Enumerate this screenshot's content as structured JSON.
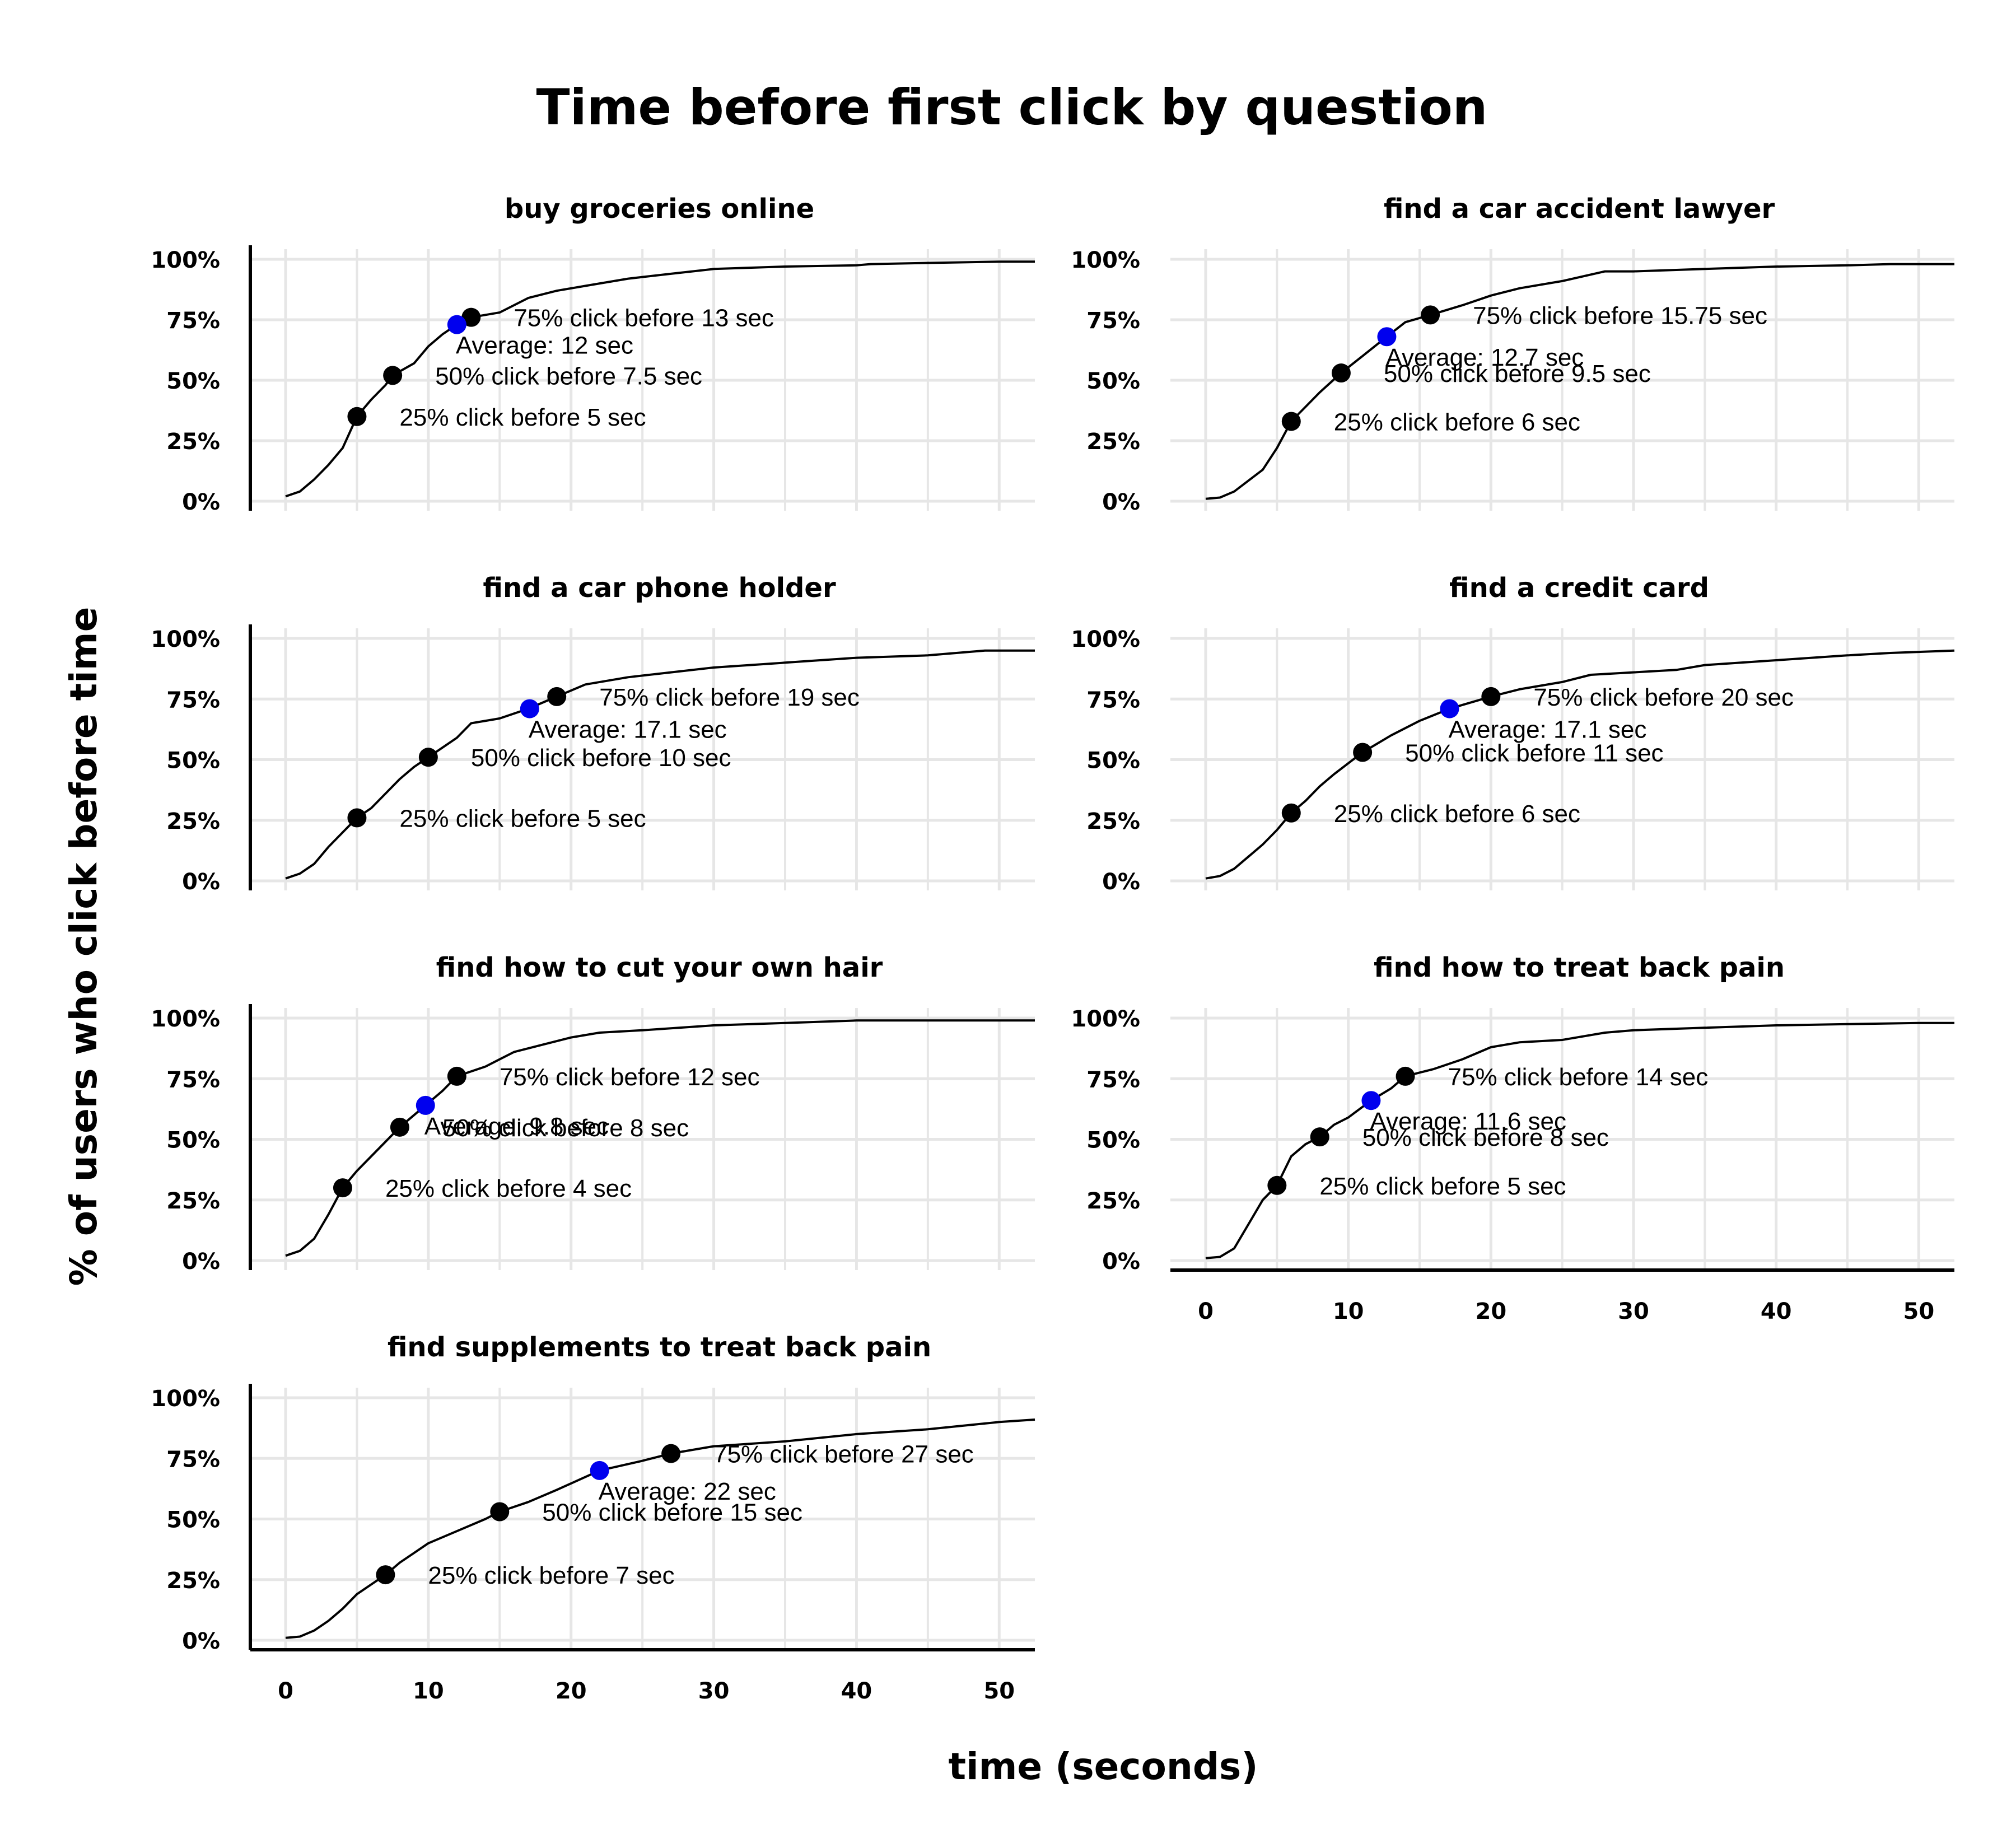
{
  "title": "Time before first click by question",
  "xlabel": "time (seconds)",
  "ylabel": "% of users who click before time",
  "colors": {
    "curve": "#000000",
    "quartile_point": "#000000",
    "average_point": "#0000ee",
    "grid": "#e6e6e6"
  },
  "chart_data": [
    {
      "type": "line",
      "title": "buy groceries online",
      "xlim": [
        0,
        52.5
      ],
      "ylim": [
        0,
        100
      ],
      "x_ticks": [
        0,
        10,
        20,
        30,
        40,
        50
      ],
      "y_ticks": [
        "0%",
        "25%",
        "50%",
        "75%",
        "100%"
      ],
      "show_x_axis": false,
      "curve": [
        [
          0,
          2
        ],
        [
          1,
          4
        ],
        [
          2,
          9
        ],
        [
          3,
          15
        ],
        [
          4,
          22
        ],
        [
          5,
          35
        ],
        [
          6,
          42
        ],
        [
          7,
          48
        ],
        [
          7.5,
          52
        ],
        [
          9,
          57
        ],
        [
          10,
          64
        ],
        [
          11,
          69
        ],
        [
          12,
          73
        ],
        [
          13,
          76
        ],
        [
          15,
          78
        ],
        [
          17,
          84
        ],
        [
          19,
          87
        ],
        [
          21,
          89
        ],
        [
          24,
          92
        ],
        [
          27,
          94
        ],
        [
          30,
          96
        ],
        [
          35,
          97
        ],
        [
          40,
          97.5
        ],
        [
          41,
          98
        ],
        [
          45,
          98.5
        ],
        [
          50,
          99
        ],
        [
          52.5,
          99
        ]
      ],
      "points": [
        {
          "x": 5,
          "y": 35,
          "kind": "quartile",
          "label": "25% click before 5 sec"
        },
        {
          "x": 7.5,
          "y": 52,
          "kind": "quartile",
          "label": "50% click before 7.5 sec"
        },
        {
          "x": 13,
          "y": 76,
          "kind": "quartile",
          "label": "75% click before 13 sec"
        },
        {
          "x": 12,
          "y": 73,
          "kind": "average",
          "label": "Average: 12 sec"
        }
      ]
    },
    {
      "type": "line",
      "title": "find a car accident lawyer",
      "xlim": [
        0,
        52.5
      ],
      "ylim": [
        0,
        100
      ],
      "x_ticks": [
        0,
        10,
        20,
        30,
        40,
        50
      ],
      "y_ticks": [
        "0%",
        "25%",
        "50%",
        "75%",
        "100%"
      ],
      "show_x_axis": false,
      "curve": [
        [
          0,
          1
        ],
        [
          1,
          1.5
        ],
        [
          2,
          4
        ],
        [
          4,
          13
        ],
        [
          5,
          22
        ],
        [
          6,
          33
        ],
        [
          7,
          39
        ],
        [
          8,
          45
        ],
        [
          9.5,
          53
        ],
        [
          11,
          60
        ],
        [
          12.7,
          68
        ],
        [
          14,
          74
        ],
        [
          15.75,
          77
        ],
        [
          18,
          81
        ],
        [
          20,
          85
        ],
        [
          22,
          88
        ],
        [
          25,
          91
        ],
        [
          28,
          95
        ],
        [
          30,
          95
        ],
        [
          35,
          96
        ],
        [
          40,
          97
        ],
        [
          45,
          97.5
        ],
        [
          48,
          98
        ],
        [
          52.5,
          98
        ]
      ],
      "points": [
        {
          "x": 6,
          "y": 33,
          "kind": "quartile",
          "label": "25% click before 6 sec"
        },
        {
          "x": 9.5,
          "y": 53,
          "kind": "quartile",
          "label": "50% click before 9.5 sec"
        },
        {
          "x": 15.75,
          "y": 77,
          "kind": "quartile",
          "label": "75% click before 15.75 sec"
        },
        {
          "x": 12.7,
          "y": 68,
          "kind": "average",
          "label": "Average: 12.7 sec"
        }
      ]
    },
    {
      "type": "line",
      "title": "find a car phone holder",
      "xlim": [
        0,
        52.5
      ],
      "ylim": [
        0,
        100
      ],
      "x_ticks": [
        0,
        10,
        20,
        30,
        40,
        50
      ],
      "y_ticks": [
        "0%",
        "25%",
        "50%",
        "75%",
        "100%"
      ],
      "show_x_axis": false,
      "curve": [
        [
          0,
          1
        ],
        [
          1,
          3
        ],
        [
          2,
          7
        ],
        [
          3,
          14
        ],
        [
          4,
          20
        ],
        [
          5,
          26
        ],
        [
          6,
          30
        ],
        [
          7,
          36
        ],
        [
          8,
          42
        ],
        [
          9,
          47
        ],
        [
          10,
          51
        ],
        [
          12,
          59
        ],
        [
          13,
          65
        ],
        [
          15,
          67
        ],
        [
          17,
          71
        ],
        [
          19,
          76
        ],
        [
          21,
          81
        ],
        [
          24,
          84
        ],
        [
          27,
          86
        ],
        [
          30,
          88
        ],
        [
          35,
          90
        ],
        [
          40,
          92
        ],
        [
          45,
          93
        ],
        [
          49,
          95
        ],
        [
          52.5,
          95
        ]
      ],
      "points": [
        {
          "x": 5,
          "y": 26,
          "kind": "quartile",
          "label": "25% click before 5 sec"
        },
        {
          "x": 10,
          "y": 51,
          "kind": "quartile",
          "label": "50% click before 10 sec"
        },
        {
          "x": 19,
          "y": 76,
          "kind": "quartile",
          "label": "75% click before 19 sec"
        },
        {
          "x": 17.1,
          "y": 71,
          "kind": "average",
          "label": "Average: 17.1 sec"
        }
      ]
    },
    {
      "type": "line",
      "title": "find a credit card",
      "xlim": [
        0,
        52.5
      ],
      "ylim": [
        0,
        100
      ],
      "x_ticks": [
        0,
        10,
        20,
        30,
        40,
        50
      ],
      "y_ticks": [
        "0%",
        "25%",
        "50%",
        "75%",
        "100%"
      ],
      "show_x_axis": false,
      "curve": [
        [
          0,
          1
        ],
        [
          1,
          2
        ],
        [
          2,
          5
        ],
        [
          3,
          10
        ],
        [
          4,
          15
        ],
        [
          5,
          21
        ],
        [
          6,
          28
        ],
        [
          7,
          33
        ],
        [
          8,
          39
        ],
        [
          9,
          44
        ],
        [
          11,
          53
        ],
        [
          13,
          60
        ],
        [
          15,
          66
        ],
        [
          17.1,
          71
        ],
        [
          20,
          76
        ],
        [
          22,
          79
        ],
        [
          25,
          82
        ],
        [
          27,
          85
        ],
        [
          30,
          86
        ],
        [
          33,
          87
        ],
        [
          35,
          89
        ],
        [
          40,
          91
        ],
        [
          45,
          93
        ],
        [
          48,
          94
        ],
        [
          52.5,
          95
        ]
      ],
      "points": [
        {
          "x": 6,
          "y": 28,
          "kind": "quartile",
          "label": "25% click before 6 sec"
        },
        {
          "x": 11,
          "y": 53,
          "kind": "quartile",
          "label": "50% click before 11 sec"
        },
        {
          "x": 20,
          "y": 76,
          "kind": "quartile",
          "label": "75% click before 20 sec"
        },
        {
          "x": 17.1,
          "y": 71,
          "kind": "average",
          "label": "Average: 17.1 sec"
        }
      ]
    },
    {
      "type": "line",
      "title": "find how to cut your own hair",
      "xlim": [
        0,
        52.5
      ],
      "ylim": [
        0,
        100
      ],
      "x_ticks": [
        0,
        10,
        20,
        30,
        40,
        50
      ],
      "y_ticks": [
        "0%",
        "25%",
        "50%",
        "75%",
        "100%"
      ],
      "show_x_axis": false,
      "curve": [
        [
          0,
          2
        ],
        [
          1,
          4
        ],
        [
          2,
          9
        ],
        [
          3,
          19
        ],
        [
          4,
          30
        ],
        [
          5,
          37
        ],
        [
          6,
          43
        ],
        [
          7,
          49
        ],
        [
          8,
          55
        ],
        [
          9,
          60
        ],
        [
          9.8,
          64
        ],
        [
          11,
          70
        ],
        [
          12,
          76
        ],
        [
          14,
          80
        ],
        [
          16,
          86
        ],
        [
          18,
          89
        ],
        [
          20,
          92
        ],
        [
          22,
          94
        ],
        [
          25,
          95
        ],
        [
          30,
          97
        ],
        [
          35,
          98
        ],
        [
          40,
          99
        ],
        [
          45,
          99
        ],
        [
          52.5,
          99
        ]
      ],
      "points": [
        {
          "x": 4,
          "y": 30,
          "kind": "quartile",
          "label": "25% click before 4 sec"
        },
        {
          "x": 8,
          "y": 55,
          "kind": "quartile",
          "label": "50% click before 8 sec"
        },
        {
          "x": 12,
          "y": 76,
          "kind": "quartile",
          "label": "75% click before 12 sec"
        },
        {
          "x": 9.8,
          "y": 64,
          "kind": "average",
          "label": "Average: 9.8 sec"
        }
      ]
    },
    {
      "type": "line",
      "title": "find how to treat back pain",
      "xlim": [
        0,
        52.5
      ],
      "ylim": [
        0,
        100
      ],
      "x_ticks": [
        0,
        10,
        20,
        30,
        40,
        50
      ],
      "y_ticks": [
        "0%",
        "25%",
        "50%",
        "75%",
        "100%"
      ],
      "show_x_axis": true,
      "curve": [
        [
          0,
          1
        ],
        [
          1,
          1.5
        ],
        [
          2,
          5
        ],
        [
          3,
          15
        ],
        [
          4,
          25
        ],
        [
          5,
          31
        ],
        [
          6,
          43
        ],
        [
          7,
          48
        ],
        [
          8,
          51
        ],
        [
          9,
          56
        ],
        [
          10,
          59
        ],
        [
          11.6,
          66
        ],
        [
          13,
          71
        ],
        [
          14,
          76
        ],
        [
          16,
          79
        ],
        [
          18,
          83
        ],
        [
          20,
          88
        ],
        [
          22,
          90
        ],
        [
          25,
          91
        ],
        [
          28,
          94
        ],
        [
          30,
          95
        ],
        [
          35,
          96
        ],
        [
          40,
          97
        ],
        [
          45,
          97.5
        ],
        [
          50,
          98
        ],
        [
          52.5,
          98
        ]
      ],
      "points": [
        {
          "x": 5,
          "y": 31,
          "kind": "quartile",
          "label": "25% click before 5 sec"
        },
        {
          "x": 8,
          "y": 51,
          "kind": "quartile",
          "label": "50% click before 8 sec"
        },
        {
          "x": 14,
          "y": 76,
          "kind": "quartile",
          "label": "75% click before 14 sec"
        },
        {
          "x": 11.6,
          "y": 66,
          "kind": "average",
          "label": "Average: 11.6 sec"
        }
      ]
    },
    {
      "type": "line",
      "title": "find supplements to treat back pain",
      "xlim": [
        0,
        52.5
      ],
      "ylim": [
        0,
        100
      ],
      "x_ticks": [
        0,
        10,
        20,
        30,
        40,
        50
      ],
      "y_ticks": [
        "0%",
        "25%",
        "50%",
        "75%",
        "100%"
      ],
      "show_x_axis": true,
      "curve": [
        [
          0,
          1
        ],
        [
          1,
          1.5
        ],
        [
          2,
          4
        ],
        [
          3,
          8
        ],
        [
          4,
          13
        ],
        [
          5,
          19
        ],
        [
          6,
          23
        ],
        [
          7,
          27
        ],
        [
          8,
          32
        ],
        [
          9,
          36
        ],
        [
          10,
          40
        ],
        [
          12,
          45
        ],
        [
          14,
          50
        ],
        [
          15,
          53
        ],
        [
          17,
          57
        ],
        [
          19,
          62
        ],
        [
          22,
          70
        ],
        [
          25,
          74
        ],
        [
          27,
          77
        ],
        [
          30,
          80
        ],
        [
          35,
          82
        ],
        [
          40,
          85
        ],
        [
          45,
          87
        ],
        [
          50,
          90
        ],
        [
          52.5,
          91
        ]
      ],
      "points": [
        {
          "x": 7,
          "y": 27,
          "kind": "quartile",
          "label": "25% click before 7 sec"
        },
        {
          "x": 15,
          "y": 53,
          "kind": "quartile",
          "label": "50% click before 15 sec"
        },
        {
          "x": 27,
          "y": 77,
          "kind": "quartile",
          "label": "75% click before 27 sec"
        },
        {
          "x": 22,
          "y": 70,
          "kind": "average",
          "label": "Average: 22 sec"
        }
      ]
    }
  ]
}
